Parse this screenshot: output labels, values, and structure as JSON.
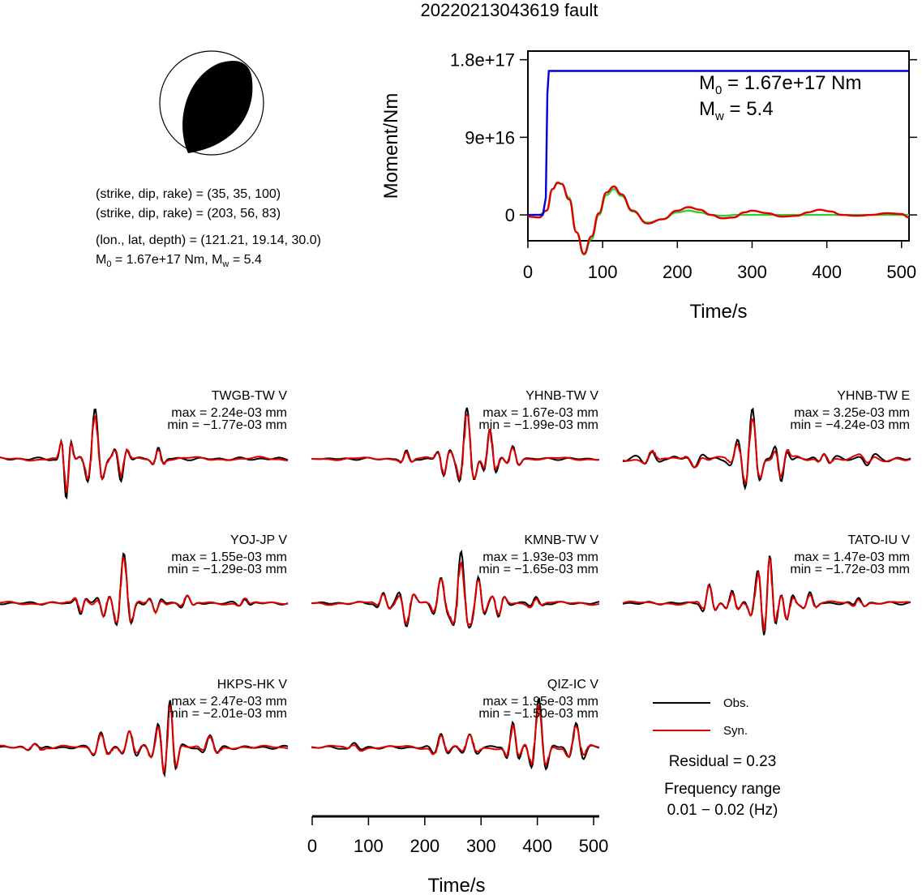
{
  "title": "20220213043619 fault",
  "info": {
    "planes": [
      "(strike, dip, rake) = (35, 35, 100)",
      "(strike, dip, rake) = (203, 56, 83)"
    ],
    "location": "(lon., lat, depth) = (121.21, 19.14, 30.0)",
    "moment_line_prefix": "M",
    "moment_line_sub": "0",
    "moment_line_rest": " = 1.67e+17 Nm, M",
    "moment_line_sub2": "w",
    "moment_line_end": " = 5.4"
  },
  "colors": {
    "observed": "#000000",
    "synthetic": "#e00000",
    "moment_curve": "#0000dd",
    "green_curve": "#33cc33"
  },
  "chart_data": [
    {
      "type": "line",
      "name": "moment-rate-panel",
      "ylabel": "Moment/Nm",
      "xlabel": "Time/s",
      "xlim": [
        0,
        510
      ],
      "ylim": [
        -3e+16,
        1.9e+17
      ],
      "yticks": [
        0,
        9e+16,
        1.8e+17
      ],
      "ytick_labels": [
        "0",
        "9e+16",
        "1.8e+17"
      ],
      "xticks": [
        0,
        100,
        200,
        300,
        400,
        500
      ],
      "xtick_labels": [
        "0",
        "100",
        "200",
        "300",
        "400",
        "500"
      ],
      "annotation": {
        "m0_prefix": "M",
        "m0_sub": "0",
        "m0_rest": " = 1.67e+17 Nm",
        "mw_prefix": "M",
        "mw_sub": "w",
        "mw_rest": " = 5.4"
      },
      "series": [
        {
          "role": "cumulative-moment",
          "x": [
            0,
            20,
            24,
            26,
            28,
            30,
            510
          ],
          "y": [
            0,
            0,
            2e+16,
            1.4e+17,
            1.67e+17,
            1.67e+17,
            1.67e+17
          ]
        },
        {
          "role": "source-time-function-red",
          "x": [
            0,
            15,
            25,
            33,
            40,
            45,
            55,
            65,
            75,
            85,
            95,
            105,
            115,
            125,
            140,
            160,
            180,
            200,
            215,
            230,
            245,
            260,
            275,
            290,
            300,
            320,
            340,
            360,
            375,
            390,
            405,
            420,
            440,
            460,
            480,
            500,
            510
          ],
          "y": [
            -2000000000000000.0,
            -3000000000000000.0,
            5000000000000000.0,
            3e+16,
            3.7e+16,
            3.6e+16,
            1.8e+16,
            -2e+16,
            -4.5e+16,
            -2.5e+16,
            2000000000000000.0,
            2.6e+16,
            3.3e+16,
            2.4e+16,
            5000000000000000.0,
            -1e+16,
            -5000000000000000.0,
            5000000000000000.0,
            9000000000000000.0,
            6000000000000000.0,
            0,
            -4000000000000000.0,
            -3000000000000000.0,
            3000000000000000.0,
            5000000000000000.0,
            2000000000000000.0,
            -2000000000000000.0,
            -1000000000000000.0,
            3000000000000000.0,
            6000000000000000.0,
            4000000000000000.0,
            0,
            -1000000000000000.0,
            0,
            2000000000000000.0,
            1000000000000000.0,
            -3000000000000000.0
          ]
        },
        {
          "role": "source-time-function-green",
          "x": [
            0,
            15,
            25,
            33,
            40,
            45,
            55,
            65,
            75,
            85,
            95,
            105,
            115,
            125,
            140,
            160,
            180,
            200,
            215,
            230,
            245,
            260,
            280,
            300,
            330,
            360,
            400,
            450,
            510
          ],
          "y": [
            0,
            0,
            5000000000000000.0,
            3e+16,
            3.8e+16,
            3.6e+16,
            2e+16,
            -2e+16,
            -4.6e+16,
            -2.8e+16,
            0,
            2.3e+16,
            3e+16,
            2.2e+16,
            4000000000000000.0,
            -9000000000000000.0,
            -5000000000000000.0,
            3000000000000000.0,
            5000000000000000.0,
            3000000000000000.0,
            0,
            -1000000000000000.0,
            0,
            0,
            0,
            0,
            0,
            0,
            0
          ]
        }
      ]
    },
    {
      "type": "line",
      "name": "waveform-time-axis",
      "xlabel": "Time/s",
      "xlim": [
        0,
        510
      ],
      "xticks": [
        0,
        100,
        200,
        300,
        400,
        500
      ],
      "xtick_labels": [
        "0",
        "100",
        "200",
        "300",
        "400",
        "500"
      ]
    }
  ],
  "stations": [
    {
      "label": "TWGB-TW V",
      "max": "max = 2.24e-03 mm",
      "min": "min = −1.77e-03 mm",
      "start": 0.0,
      "noise": 0.03,
      "misfit": 0.45,
      "seed": 3,
      "wavelets": [
        [
          0.23,
          0.02,
          -0.8,
          0.65
        ],
        [
          0.33,
          0.03,
          1.0,
          0.62
        ],
        [
          0.42,
          0.025,
          -0.45,
          0.55
        ],
        [
          0.55,
          0.022,
          0.22,
          0.6
        ]
      ]
    },
    {
      "label": "YHNB-TW V",
      "max": "max = 1.67e-03 mm",
      "min": "min = −1.99e-03 mm",
      "start": 0.1,
      "noise": 0.025,
      "misfit": 0.35,
      "seed": 7,
      "wavelets": [
        [
          0.33,
          0.022,
          0.15,
          0.6
        ],
        [
          0.46,
          0.025,
          -0.35,
          0.6
        ],
        [
          0.54,
          0.03,
          1.0,
          0.6
        ],
        [
          0.62,
          0.025,
          0.6,
          0.6
        ],
        [
          0.7,
          0.025,
          0.25,
          0.6
        ]
      ]
    },
    {
      "label": "YHNB-TW E",
      "max": "max = 3.25e-03 mm",
      "min": "min = −4.24e-03 mm",
      "start": 0.0,
      "noise": 0.06,
      "misfit": 0.55,
      "seed": 11,
      "wavelets": [
        [
          0.1,
          0.03,
          0.15,
          0.5
        ],
        [
          0.25,
          0.035,
          -0.2,
          0.5
        ],
        [
          0.4,
          0.03,
          0.3,
          0.6
        ],
        [
          0.45,
          0.03,
          1.0,
          0.55
        ],
        [
          0.55,
          0.025,
          -0.45,
          0.6
        ],
        [
          0.7,
          0.025,
          0.15,
          0.6
        ],
        [
          0.85,
          0.03,
          -0.1,
          0.5
        ]
      ]
    },
    {
      "label": "YOJ-JP V",
      "max": "max = 1.55e-03 mm",
      "min": "min = −1.29e-03 mm",
      "start": 0.0,
      "noise": 0.03,
      "misfit": 0.35,
      "seed": 13,
      "wavelets": [
        [
          0.28,
          0.022,
          -0.2,
          0.6
        ],
        [
          0.36,
          0.025,
          -0.25,
          0.6
        ],
        [
          0.43,
          0.03,
          1.0,
          0.6
        ],
        [
          0.54,
          0.025,
          -0.2,
          0.6
        ],
        [
          0.65,
          0.025,
          0.15,
          0.6
        ],
        [
          0.85,
          0.025,
          0.1,
          0.6
        ]
      ]
    },
    {
      "label": "KMNB-TW V",
      "max": "max = 1.93e-03 mm",
      "min": "min = −1.65e-03 mm",
      "start": 0.05,
      "noise": 0.03,
      "misfit": 0.4,
      "seed": 17,
      "wavelets": [
        [
          0.25,
          0.025,
          0.2,
          0.6
        ],
        [
          0.33,
          0.03,
          -0.45,
          0.6
        ],
        [
          0.45,
          0.03,
          0.5,
          0.6
        ],
        [
          0.52,
          0.03,
          1.0,
          0.6
        ],
        [
          0.58,
          0.025,
          0.5,
          0.6
        ],
        [
          0.65,
          0.025,
          -0.3,
          0.6
        ],
        [
          0.78,
          0.025,
          0.12,
          0.6
        ]
      ]
    },
    {
      "label": "TATO-IU V",
      "max": "max = 1.47e-03 mm",
      "min": "min = −1.72e-03 mm",
      "start": 0.0,
      "noise": 0.03,
      "misfit": 0.4,
      "seed": 19,
      "wavelets": [
        [
          0.3,
          0.025,
          0.35,
          0.6
        ],
        [
          0.38,
          0.025,
          0.25,
          0.6
        ],
        [
          0.47,
          0.03,
          0.65,
          0.6
        ],
        [
          0.51,
          0.025,
          1.0,
          0.6
        ],
        [
          0.57,
          0.025,
          -0.35,
          0.6
        ],
        [
          0.65,
          0.025,
          0.2,
          0.6
        ],
        [
          0.82,
          0.025,
          0.12,
          0.6
        ]
      ]
    },
    {
      "label": "HKPS-HK V",
      "max": "max = 2.47e-03 mm",
      "min": "min = −2.01e-03 mm",
      "start": 0.0,
      "noise": 0.035,
      "misfit": 0.35,
      "seed": 23,
      "wavelets": [
        [
          0.12,
          0.03,
          0.1,
          0.6
        ],
        [
          0.35,
          0.03,
          0.3,
          0.6
        ],
        [
          0.45,
          0.03,
          0.35,
          0.6
        ],
        [
          0.55,
          0.03,
          0.45,
          0.6
        ],
        [
          0.59,
          0.025,
          1.0,
          0.6
        ],
        [
          0.73,
          0.03,
          0.25,
          0.6
        ]
      ]
    },
    {
      "label": "QIZ-IC V",
      "max": "max = 1.95e-03 mm",
      "min": "min = −1.50e-03 mm",
      "start": 0.0,
      "noise": 0.03,
      "misfit": 0.5,
      "seed": 29,
      "wavelets": [
        [
          0.15,
          0.03,
          0.08,
          0.6
        ],
        [
          0.45,
          0.03,
          0.3,
          0.6
        ],
        [
          0.55,
          0.03,
          0.25,
          0.6
        ],
        [
          0.7,
          0.025,
          0.5,
          0.6
        ],
        [
          0.79,
          0.03,
          1.0,
          0.6
        ],
        [
          0.92,
          0.03,
          0.5,
          0.6
        ]
      ]
    }
  ],
  "legend": {
    "observed": "Obs.",
    "synthetic": "Syn."
  },
  "summary": {
    "residual": "Residual = 0.23",
    "freq_title": "Frequency range",
    "freq_range": "0.01 − 0.02 (Hz)"
  }
}
